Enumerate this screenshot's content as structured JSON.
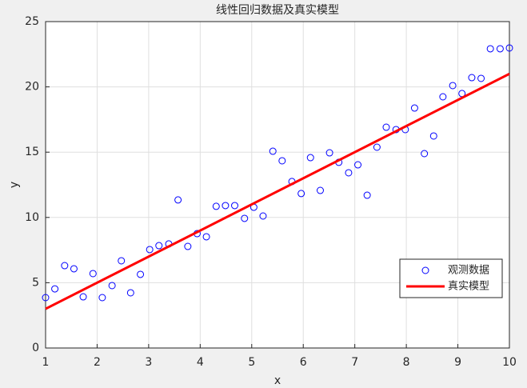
{
  "chart_data": {
    "type": "scatter",
    "title": "线性回归数据及真实模型",
    "xlabel": "x",
    "ylabel": "y",
    "xlim": [
      1,
      10
    ],
    "ylim": [
      0,
      25
    ],
    "xticks": [
      1,
      2,
      3,
      4,
      5,
      6,
      7,
      8,
      9,
      10
    ],
    "yticks": [
      0,
      5,
      10,
      15,
      20,
      25
    ],
    "grid": true,
    "legend": "lower right",
    "series": [
      {
        "name": "观测数据",
        "type": "scatter",
        "color": "#0000ff",
        "x": [
          1.0,
          1.18,
          1.37,
          1.55,
          1.73,
          1.92,
          2.1,
          2.29,
          2.47,
          2.65,
          2.84,
          3.02,
          3.2,
          3.39,
          3.57,
          3.76,
          3.94,
          4.12,
          4.31,
          4.49,
          4.67,
          4.86,
          5.04,
          5.22,
          5.41,
          5.59,
          5.78,
          5.96,
          6.14,
          6.33,
          6.51,
          6.69,
          6.88,
          7.06,
          7.24,
          7.43,
          7.61,
          7.8,
          7.98,
          8.16,
          8.35,
          8.53,
          8.71,
          8.9,
          9.08,
          9.27,
          9.45,
          9.63,
          9.82,
          10.0
        ],
        "values": [
          3.86,
          4.53,
          6.31,
          6.07,
          3.92,
          5.7,
          3.86,
          4.78,
          6.68,
          4.23,
          5.64,
          7.54,
          7.84,
          7.97,
          11.34,
          7.78,
          8.76,
          8.52,
          10.85,
          10.91,
          10.91,
          9.93,
          10.78,
          10.11,
          15.07,
          14.34,
          12.75,
          11.83,
          14.58,
          12.07,
          14.95,
          14.22,
          13.42,
          14.03,
          11.7,
          15.38,
          16.91,
          16.73,
          16.73,
          18.38,
          14.89,
          16.24,
          19.24,
          20.1,
          19.49,
          20.71,
          20.65,
          22.92,
          22.92,
          22.98
        ]
      },
      {
        "name": "真实模型",
        "type": "line",
        "color": "#ff0000",
        "x": [
          1,
          10
        ],
        "values": [
          3,
          21
        ]
      }
    ]
  }
}
